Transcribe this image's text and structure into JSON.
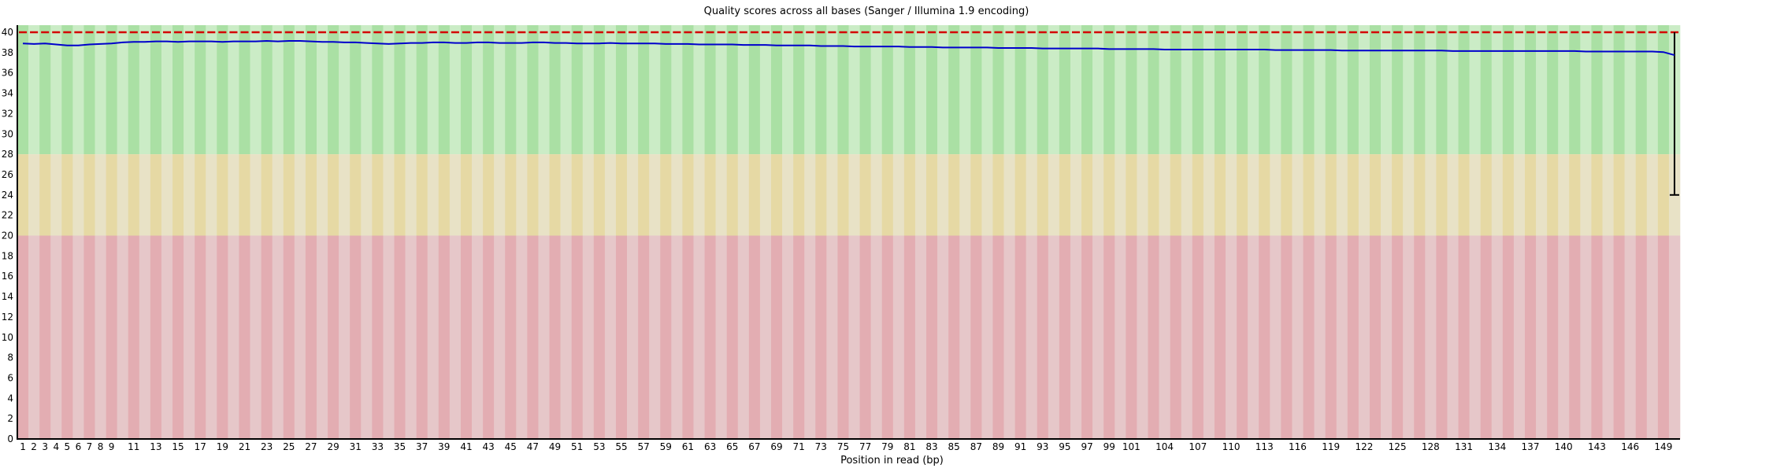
{
  "chart_data": {
    "type": "line",
    "title": "Quality scores across all bases (Sanger / Illumina 1.9 encoding)",
    "xlabel": "Position in read (bp)",
    "ylabel": "",
    "ylim": [
      0,
      40.7
    ],
    "xlim": [
      1,
      150
    ],
    "grid": false,
    "legend_position": "none",
    "y_ticks": [
      0,
      2,
      4,
      6,
      8,
      10,
      12,
      14,
      16,
      18,
      20,
      22,
      24,
      26,
      28,
      30,
      32,
      34,
      36,
      38,
      40
    ],
    "x_positions_total": 150,
    "x_tick_labels": [
      1,
      2,
      3,
      4,
      5,
      6,
      7,
      8,
      9,
      11,
      13,
      15,
      17,
      19,
      21,
      23,
      25,
      27,
      29,
      31,
      33,
      35,
      37,
      39,
      41,
      43,
      45,
      47,
      49,
      51,
      53,
      55,
      57,
      59,
      61,
      63,
      65,
      67,
      69,
      71,
      73,
      75,
      77,
      79,
      81,
      83,
      85,
      87,
      89,
      91,
      93,
      95,
      97,
      99,
      101,
      104,
      107,
      110,
      113,
      116,
      119,
      122,
      125,
      128,
      131,
      134,
      137,
      140,
      143,
      146,
      149
    ],
    "zones": [
      {
        "name": "good-quality-zone",
        "range": [
          28,
          40.7
        ],
        "color_dark": "#aae0a4",
        "color_light": "#cbecc6"
      },
      {
        "name": "ok-quality-zone",
        "range": [
          20,
          28
        ],
        "color_dark": "#e6d9a4",
        "color_light": "#e8e2c6"
      },
      {
        "name": "bad-quality-zone",
        "range": [
          0,
          20
        ],
        "color_dark": "#e3adb2",
        "color_light": "#e6c7c9"
      }
    ],
    "median_quality_all_positions": 40,
    "median_color": "#d40000",
    "mean_color": "#0000cc",
    "axis_color": "#000000",
    "mean_quality": [
      38.9,
      38.85,
      38.9,
      38.8,
      38.7,
      38.7,
      38.8,
      38.85,
      38.9,
      39.0,
      39.05,
      39.05,
      39.1,
      39.1,
      39.05,
      39.1,
      39.1,
      39.1,
      39.05,
      39.1,
      39.1,
      39.1,
      39.15,
      39.1,
      39.15,
      39.15,
      39.1,
      39.05,
      39.05,
      39.0,
      39.0,
      38.95,
      38.9,
      38.85,
      38.9,
      38.95,
      38.95,
      39.0,
      39.0,
      38.95,
      38.95,
      39.0,
      39.0,
      38.95,
      38.95,
      38.95,
      39.0,
      39.0,
      38.95,
      38.95,
      38.9,
      38.9,
      38.9,
      38.95,
      38.9,
      38.9,
      38.9,
      38.9,
      38.85,
      38.85,
      38.85,
      38.8,
      38.8,
      38.8,
      38.8,
      38.75,
      38.75,
      38.75,
      38.7,
      38.7,
      38.7,
      38.7,
      38.65,
      38.65,
      38.65,
      38.6,
      38.6,
      38.6,
      38.6,
      38.6,
      38.55,
      38.55,
      38.55,
      38.5,
      38.5,
      38.5,
      38.5,
      38.5,
      38.45,
      38.45,
      38.45,
      38.45,
      38.4,
      38.4,
      38.4,
      38.4,
      38.4,
      38.4,
      38.35,
      38.35,
      38.35,
      38.35,
      38.35,
      38.3,
      38.3,
      38.3,
      38.3,
      38.3,
      38.3,
      38.3,
      38.3,
      38.3,
      38.3,
      38.25,
      38.25,
      38.25,
      38.25,
      38.25,
      38.25,
      38.2,
      38.2,
      38.2,
      38.2,
      38.2,
      38.2,
      38.2,
      38.2,
      38.2,
      38.2,
      38.15,
      38.15,
      38.15,
      38.15,
      38.15,
      38.15,
      38.15,
      38.15,
      38.15,
      38.15,
      38.15,
      38.15,
      38.1,
      38.1,
      38.1,
      38.1,
      38.1,
      38.1,
      38.1,
      38.05,
      37.75
    ],
    "last_position_whisker": {
      "low": 24,
      "high": 40
    }
  }
}
